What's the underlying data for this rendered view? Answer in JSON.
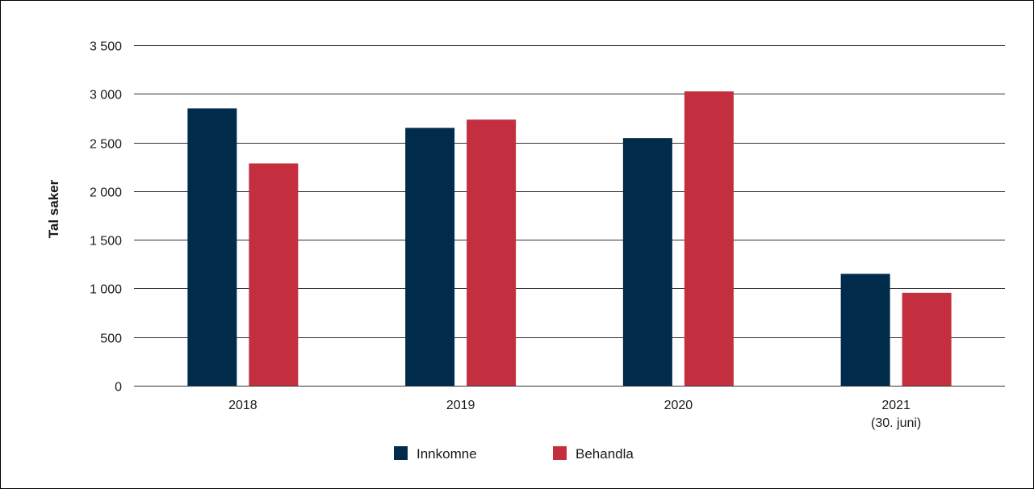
{
  "chart_data": {
    "type": "bar",
    "title": "",
    "xlabel": "",
    "ylabel": "Tal saker",
    "ylim": [
      0,
      3500
    ],
    "yticks": [
      {
        "value": 0,
        "label": "0"
      },
      {
        "value": 500,
        "label": "500"
      },
      {
        "value": 1000,
        "label": "1 000"
      },
      {
        "value": 1500,
        "label": "1 500"
      },
      {
        "value": 2000,
        "label": "2 000"
      },
      {
        "value": 2500,
        "label": "2 500"
      },
      {
        "value": 3000,
        "label": "3 000"
      },
      {
        "value": 3500,
        "label": "3 500"
      }
    ],
    "categories": [
      {
        "label": "2018",
        "sublabel": ""
      },
      {
        "label": "2019",
        "sublabel": ""
      },
      {
        "label": "2020",
        "sublabel": ""
      },
      {
        "label": "2021",
        "sublabel": "(30. juni)"
      }
    ],
    "series": [
      {
        "name": "Innkomne",
        "color": "#002b4b",
        "values": [
          2850,
          2650,
          2545,
          1150
        ]
      },
      {
        "name": "Behandla",
        "color": "#c42f40",
        "values": [
          2285,
          2735,
          3025,
          955
        ]
      }
    ],
    "grid": true,
    "gridline_color": "#333333",
    "legend_position": "bottom-center"
  }
}
